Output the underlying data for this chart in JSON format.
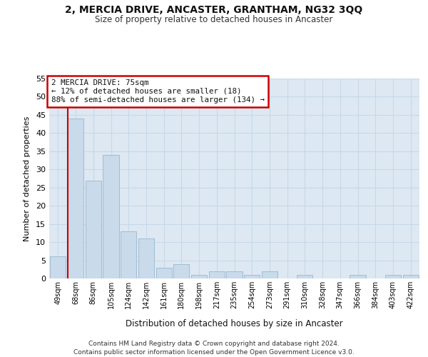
{
  "title": "2, MERCIA DRIVE, ANCASTER, GRANTHAM, NG32 3QQ",
  "subtitle": "Size of property relative to detached houses in Ancaster",
  "xlabel": "Distribution of detached houses by size in Ancaster",
  "ylabel": "Number of detached properties",
  "categories": [
    "49sqm",
    "68sqm",
    "86sqm",
    "105sqm",
    "124sqm",
    "142sqm",
    "161sqm",
    "180sqm",
    "198sqm",
    "217sqm",
    "235sqm",
    "254sqm",
    "273sqm",
    "291sqm",
    "310sqm",
    "328sqm",
    "347sqm",
    "366sqm",
    "384sqm",
    "403sqm",
    "422sqm"
  ],
  "values": [
    6,
    44,
    27,
    34,
    13,
    11,
    3,
    4,
    1,
    2,
    2,
    1,
    2,
    0,
    1,
    0,
    0,
    1,
    0,
    1,
    1
  ],
  "bar_color": "#c9daea",
  "bar_edge_color": "#a0bdd4",
  "grid_color": "#c8d8e8",
  "background_color": "#dde8f2",
  "vline_color": "#cc0000",
  "annotation_box_color": "#cc0000",
  "ylim": [
    0,
    55
  ],
  "yticks": [
    0,
    5,
    10,
    15,
    20,
    25,
    30,
    35,
    40,
    45,
    50,
    55
  ],
  "footer_line1": "Contains HM Land Registry data © Crown copyright and database right 2024.",
  "footer_line2": "Contains public sector information licensed under the Open Government Licence v3.0.",
  "annotation_line1": "2 MERCIA DRIVE: 75sqm",
  "annotation_line2": "← 12% of detached houses are smaller (18)",
  "annotation_line3": "88% of semi-detached houses are larger (134) →"
}
